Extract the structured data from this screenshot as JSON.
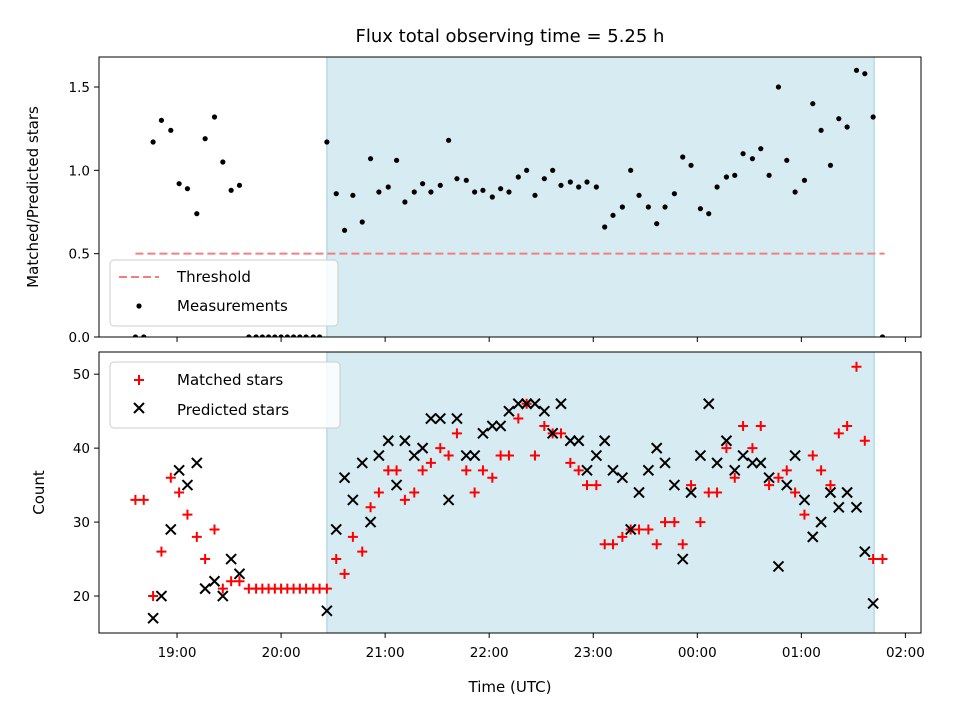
{
  "figure_title": "Flux total observing time = 5.25 h",
  "x_tick_labels": [
    "19:00",
    "20:00",
    "21:00",
    "22:00",
    "23:00",
    "00:00",
    "01:00",
    "02:00"
  ],
  "chart_data": [
    {
      "type": "scatter",
      "ylabel": "Matched/Predicted stars",
      "xlabel": "",
      "ylim": [
        0,
        1.68
      ],
      "yticks": [
        0.0,
        0.5,
        1.0,
        1.5
      ],
      "ytick_labels": [
        "0.0",
        "0.5",
        "1.0",
        "1.5"
      ],
      "x_unit": "hours after 00:00 UTC of first night",
      "xlim": [
        18.25,
        26.15
      ],
      "shaded_span": [
        20.44,
        25.7
      ],
      "threshold": {
        "name": "Threshold",
        "value": 0.5,
        "x_range": [
          18.6,
          25.8
        ],
        "color": "#f08080"
      },
      "legend": {
        "position": "lower-left",
        "entries": [
          "Threshold",
          "Measurements"
        ]
      },
      "series": [
        {
          "name": "Measurements",
          "color": "#000000",
          "points": [
            [
              18.6,
              0.0
            ],
            [
              18.68,
              0.0
            ],
            [
              18.77,
              1.17
            ],
            [
              18.85,
              1.3
            ],
            [
              18.94,
              1.24
            ],
            [
              19.02,
              0.92
            ],
            [
              19.1,
              0.89
            ],
            [
              19.19,
              0.74
            ],
            [
              19.27,
              1.19
            ],
            [
              19.36,
              1.32
            ],
            [
              19.44,
              1.05
            ],
            [
              19.52,
              0.88
            ],
            [
              19.6,
              0.91
            ],
            [
              19.69,
              0.0
            ],
            [
              19.76,
              0.0
            ],
            [
              19.82,
              0.0
            ],
            [
              19.88,
              0.0
            ],
            [
              19.94,
              0.0
            ],
            [
              20.0,
              0.0
            ],
            [
              20.06,
              0.0
            ],
            [
              20.12,
              0.0
            ],
            [
              20.18,
              0.0
            ],
            [
              20.24,
              0.0
            ],
            [
              20.31,
              0.0
            ],
            [
              20.37,
              0.0
            ],
            [
              20.44,
              1.17
            ],
            [
              20.53,
              0.86
            ],
            [
              20.61,
              0.64
            ],
            [
              20.69,
              0.85
            ],
            [
              20.78,
              0.69
            ],
            [
              20.86,
              1.07
            ],
            [
              20.94,
              0.87
            ],
            [
              21.03,
              0.9
            ],
            [
              21.11,
              1.06
            ],
            [
              21.19,
              0.81
            ],
            [
              21.28,
              0.87
            ],
            [
              21.36,
              0.92
            ],
            [
              21.44,
              0.87
            ],
            [
              21.53,
              0.91
            ],
            [
              21.61,
              1.18
            ],
            [
              21.69,
              0.95
            ],
            [
              21.78,
              0.94
            ],
            [
              21.86,
              0.87
            ],
            [
              21.94,
              0.88
            ],
            [
              22.03,
              0.84
            ],
            [
              22.11,
              0.89
            ],
            [
              22.19,
              0.87
            ],
            [
              22.28,
              0.96
            ],
            [
              22.36,
              1.0
            ],
            [
              22.44,
              0.85
            ],
            [
              22.53,
              0.95
            ],
            [
              22.61,
              1.0
            ],
            [
              22.69,
              0.91
            ],
            [
              22.78,
              0.93
            ],
            [
              22.86,
              0.9
            ],
            [
              22.94,
              0.93
            ],
            [
              23.03,
              0.9
            ],
            [
              23.11,
              0.66
            ],
            [
              23.19,
              0.73
            ],
            [
              23.28,
              0.78
            ],
            [
              23.36,
              1.0
            ],
            [
              23.44,
              0.85
            ],
            [
              23.53,
              0.78
            ],
            [
              23.61,
              0.68
            ],
            [
              23.69,
              0.78
            ],
            [
              23.78,
              0.86
            ],
            [
              23.86,
              1.08
            ],
            [
              23.94,
              1.03
            ],
            [
              24.03,
              0.77
            ],
            [
              24.11,
              0.74
            ],
            [
              24.19,
              0.9
            ],
            [
              24.28,
              0.96
            ],
            [
              24.36,
              0.97
            ],
            [
              24.44,
              1.1
            ],
            [
              24.53,
              1.07
            ],
            [
              24.61,
              1.13
            ],
            [
              24.69,
              0.97
            ],
            [
              24.78,
              1.5
            ],
            [
              24.86,
              1.06
            ],
            [
              24.94,
              0.87
            ],
            [
              25.03,
              0.94
            ],
            [
              25.11,
              1.4
            ],
            [
              25.19,
              1.24
            ],
            [
              25.28,
              1.03
            ],
            [
              25.36,
              1.31
            ],
            [
              25.44,
              1.26
            ],
            [
              25.53,
              1.6
            ],
            [
              25.61,
              1.58
            ],
            [
              25.69,
              1.32
            ],
            [
              25.78,
              0.0
            ]
          ]
        }
      ]
    },
    {
      "type": "scatter",
      "ylabel": "Count",
      "xlabel": "Time (UTC)",
      "ylim": [
        15,
        53
      ],
      "yticks": [
        20,
        30,
        40,
        50
      ],
      "ytick_labels": [
        "20",
        "30",
        "40",
        "50"
      ],
      "x_unit": "hours after 00:00 UTC of first night",
      "xlim": [
        18.25,
        26.15
      ],
      "shaded_span": [
        20.44,
        25.7
      ],
      "legend": {
        "position": "top-left",
        "entries": [
          "Matched stars",
          "Predicted stars"
        ]
      },
      "series": [
        {
          "name": "Matched stars",
          "marker": "plus",
          "color": "#ff0000",
          "points": [
            [
              18.6,
              33
            ],
            [
              18.68,
              33
            ],
            [
              18.77,
              20
            ],
            [
              18.85,
              26
            ],
            [
              18.94,
              36
            ],
            [
              19.02,
              34
            ],
            [
              19.1,
              31
            ],
            [
              19.19,
              28
            ],
            [
              19.27,
              25
            ],
            [
              19.36,
              29
            ],
            [
              19.44,
              21
            ],
            [
              19.52,
              22
            ],
            [
              19.6,
              22
            ],
            [
              19.69,
              21
            ],
            [
              19.76,
              21
            ],
            [
              19.82,
              21
            ],
            [
              19.88,
              21
            ],
            [
              19.94,
              21
            ],
            [
              20.0,
              21
            ],
            [
              20.06,
              21
            ],
            [
              20.12,
              21
            ],
            [
              20.18,
              21
            ],
            [
              20.24,
              21
            ],
            [
              20.31,
              21
            ],
            [
              20.37,
              21
            ],
            [
              20.44,
              21
            ],
            [
              20.53,
              25
            ],
            [
              20.61,
              23
            ],
            [
              20.69,
              28
            ],
            [
              20.78,
              26
            ],
            [
              20.86,
              32
            ],
            [
              20.94,
              34
            ],
            [
              21.03,
              37
            ],
            [
              21.11,
              37
            ],
            [
              21.19,
              33
            ],
            [
              21.28,
              34
            ],
            [
              21.36,
              37
            ],
            [
              21.44,
              38
            ],
            [
              21.53,
              40
            ],
            [
              21.61,
              39
            ],
            [
              21.69,
              42
            ],
            [
              21.78,
              37
            ],
            [
              21.86,
              34
            ],
            [
              21.94,
              37
            ],
            [
              22.03,
              36
            ],
            [
              22.11,
              39
            ],
            [
              22.19,
              39
            ],
            [
              22.28,
              44
            ],
            [
              22.36,
              46
            ],
            [
              22.44,
              39
            ],
            [
              22.53,
              43
            ],
            [
              22.61,
              42
            ],
            [
              22.69,
              42
            ],
            [
              22.78,
              38
            ],
            [
              22.86,
              37
            ],
            [
              22.94,
              35
            ],
            [
              23.03,
              35
            ],
            [
              23.11,
              27
            ],
            [
              23.19,
              27
            ],
            [
              23.28,
              28
            ],
            [
              23.36,
              29
            ],
            [
              23.44,
              29
            ],
            [
              23.53,
              29
            ],
            [
              23.61,
              27
            ],
            [
              23.69,
              30
            ],
            [
              23.78,
              30
            ],
            [
              23.86,
              27
            ],
            [
              23.94,
              35
            ],
            [
              24.03,
              30
            ],
            [
              24.11,
              34
            ],
            [
              24.19,
              34
            ],
            [
              24.28,
              40
            ],
            [
              24.36,
              36
            ],
            [
              24.44,
              43
            ],
            [
              24.53,
              40
            ],
            [
              24.61,
              43
            ],
            [
              24.69,
              35
            ],
            [
              24.78,
              36
            ],
            [
              24.86,
              37
            ],
            [
              24.94,
              34
            ],
            [
              25.03,
              31
            ],
            [
              25.11,
              39
            ],
            [
              25.19,
              37
            ],
            [
              25.28,
              35
            ],
            [
              25.36,
              42
            ],
            [
              25.44,
              43
            ],
            [
              25.53,
              51
            ],
            [
              25.61,
              41
            ],
            [
              25.69,
              25
            ],
            [
              25.78,
              25
            ]
          ]
        },
        {
          "name": "Predicted stars",
          "marker": "x",
          "color": "#000000",
          "points": [
            [
              18.77,
              17
            ],
            [
              18.85,
              20
            ],
            [
              18.94,
              29
            ],
            [
              19.02,
              37
            ],
            [
              19.1,
              35
            ],
            [
              19.19,
              38
            ],
            [
              19.27,
              21
            ],
            [
              19.36,
              22
            ],
            [
              19.44,
              20
            ],
            [
              19.52,
              25
            ],
            [
              19.6,
              23
            ],
            [
              20.44,
              18
            ],
            [
              20.53,
              29
            ],
            [
              20.61,
              36
            ],
            [
              20.69,
              33
            ],
            [
              20.78,
              38
            ],
            [
              20.86,
              30
            ],
            [
              20.94,
              39
            ],
            [
              21.03,
              41
            ],
            [
              21.11,
              35
            ],
            [
              21.19,
              41
            ],
            [
              21.28,
              39
            ],
            [
              21.36,
              40
            ],
            [
              21.44,
              44
            ],
            [
              21.53,
              44
            ],
            [
              21.61,
              33
            ],
            [
              21.69,
              44
            ],
            [
              21.78,
              39
            ],
            [
              21.86,
              39
            ],
            [
              21.94,
              42
            ],
            [
              22.03,
              43
            ],
            [
              22.11,
              43
            ],
            [
              22.19,
              45
            ],
            [
              22.28,
              46
            ],
            [
              22.36,
              46
            ],
            [
              22.44,
              46
            ],
            [
              22.53,
              45
            ],
            [
              22.61,
              42
            ],
            [
              22.69,
              46
            ],
            [
              22.78,
              41
            ],
            [
              22.86,
              41
            ],
            [
              22.94,
              37
            ],
            [
              23.03,
              39
            ],
            [
              23.11,
              41
            ],
            [
              23.19,
              37
            ],
            [
              23.28,
              36
            ],
            [
              23.36,
              29
            ],
            [
              23.44,
              34
            ],
            [
              23.53,
              37
            ],
            [
              23.61,
              40
            ],
            [
              23.69,
              38
            ],
            [
              23.78,
              35
            ],
            [
              23.86,
              25
            ],
            [
              23.94,
              34
            ],
            [
              24.03,
              39
            ],
            [
              24.11,
              46
            ],
            [
              24.19,
              38
            ],
            [
              24.28,
              41
            ],
            [
              24.36,
              37
            ],
            [
              24.44,
              39
            ],
            [
              24.53,
              38
            ],
            [
              24.61,
              38
            ],
            [
              24.69,
              36
            ],
            [
              24.78,
              24
            ],
            [
              24.86,
              35
            ],
            [
              24.94,
              39
            ],
            [
              25.03,
              33
            ],
            [
              25.11,
              28
            ],
            [
              25.19,
              30
            ],
            [
              25.28,
              34
            ],
            [
              25.36,
              32
            ],
            [
              25.44,
              34
            ],
            [
              25.53,
              32
            ],
            [
              25.61,
              26
            ],
            [
              25.69,
              19
            ]
          ]
        }
      ]
    }
  ]
}
